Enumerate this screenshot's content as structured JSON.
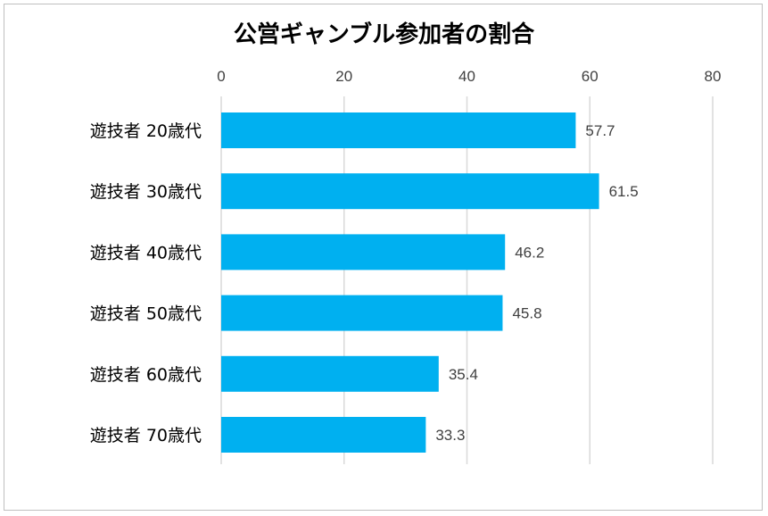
{
  "chart_data": {
    "type": "bar",
    "orientation": "horizontal",
    "title": "公営ギャンブル参加者の割合",
    "categories": [
      "遊技者 20歳代",
      "遊技者 30歳代",
      "遊技者 40歳代",
      "遊技者 50歳代",
      "遊技者 60歳代",
      "遊技者 70歳代"
    ],
    "values": [
      57.7,
      61.5,
      46.2,
      45.8,
      35.4,
      33.3
    ],
    "xlim": [
      0,
      80
    ],
    "xticks": [
      0,
      20,
      40,
      60,
      80
    ],
    "axis_position": "top",
    "grid": true,
    "legend": false,
    "bar_color": "#00b0f0",
    "grid_color": "#d9d9d9",
    "label_color": "#404040"
  }
}
